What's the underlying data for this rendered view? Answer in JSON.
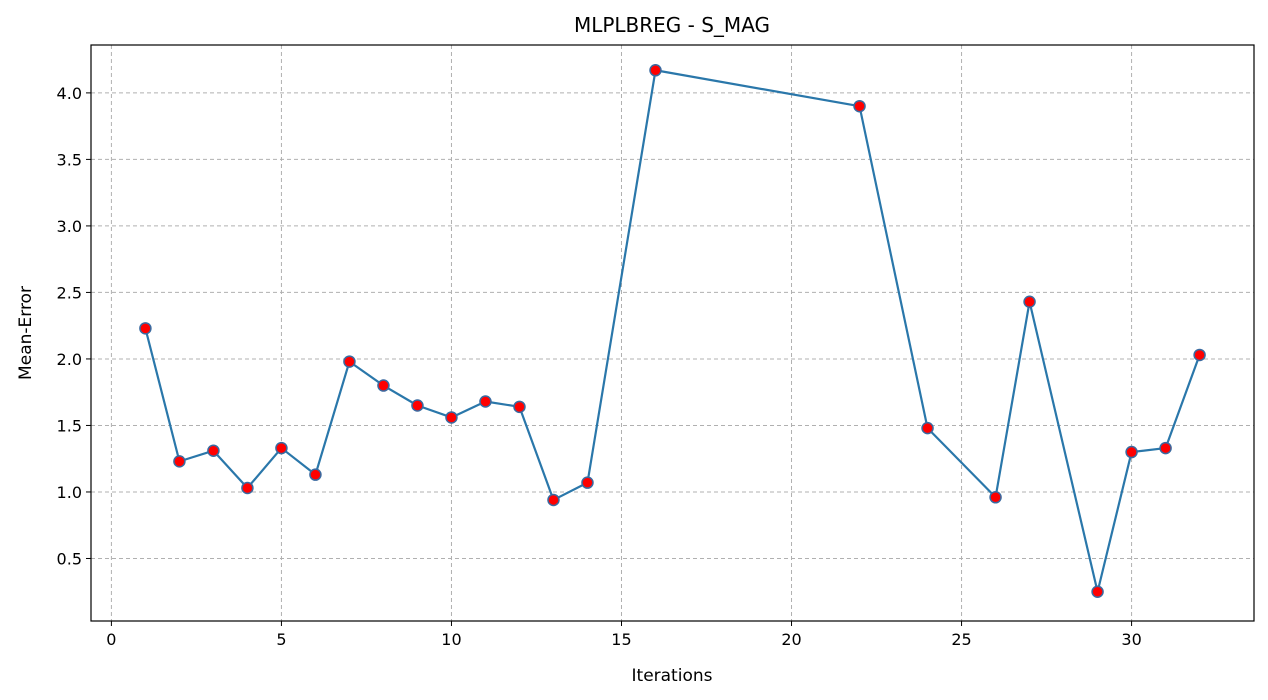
{
  "chart_data": {
    "type": "line",
    "title": "MLPLBREG - S_MAG",
    "xlabel": "Iterations",
    "ylabel": "Mean-Error",
    "xlim": [
      -0.6,
      33.6
    ],
    "ylim": [
      0.03,
      4.36
    ],
    "xticks": [
      0,
      5,
      10,
      15,
      20,
      25,
      30
    ],
    "yticks": [
      0.5,
      1.0,
      1.5,
      2.0,
      2.5,
      3.0,
      3.5,
      4.0
    ],
    "grid": true,
    "series": [
      {
        "line_color": "#2a77aa",
        "marker_color": "#ff0000",
        "marker_edge_color": "#3a6aa0",
        "points": [
          {
            "x": 1,
            "y": 2.23
          },
          {
            "x": 2,
            "y": 1.23
          },
          {
            "x": 3,
            "y": 1.31
          },
          {
            "x": 4,
            "y": 1.03
          },
          {
            "x": 5,
            "y": 1.33
          },
          {
            "x": 6,
            "y": 1.13
          },
          {
            "x": 7,
            "y": 1.98
          },
          {
            "x": 8,
            "y": 1.8
          },
          {
            "x": 9,
            "y": 1.65
          },
          {
            "x": 10,
            "y": 1.56
          },
          {
            "x": 11,
            "y": 1.68
          },
          {
            "x": 12,
            "y": 1.64
          },
          {
            "x": 13,
            "y": 0.94
          },
          {
            "x": 14,
            "y": 1.07
          },
          {
            "x": 16,
            "y": 4.17
          },
          {
            "x": 22,
            "y": 3.9
          },
          {
            "x": 24,
            "y": 1.48
          },
          {
            "x": 26,
            "y": 0.96
          },
          {
            "x": 27,
            "y": 2.43
          },
          {
            "x": 29,
            "y": 0.25
          },
          {
            "x": 30,
            "y": 1.3
          },
          {
            "x": 31,
            "y": 1.33
          },
          {
            "x": 32,
            "y": 2.03
          }
        ]
      }
    ]
  }
}
